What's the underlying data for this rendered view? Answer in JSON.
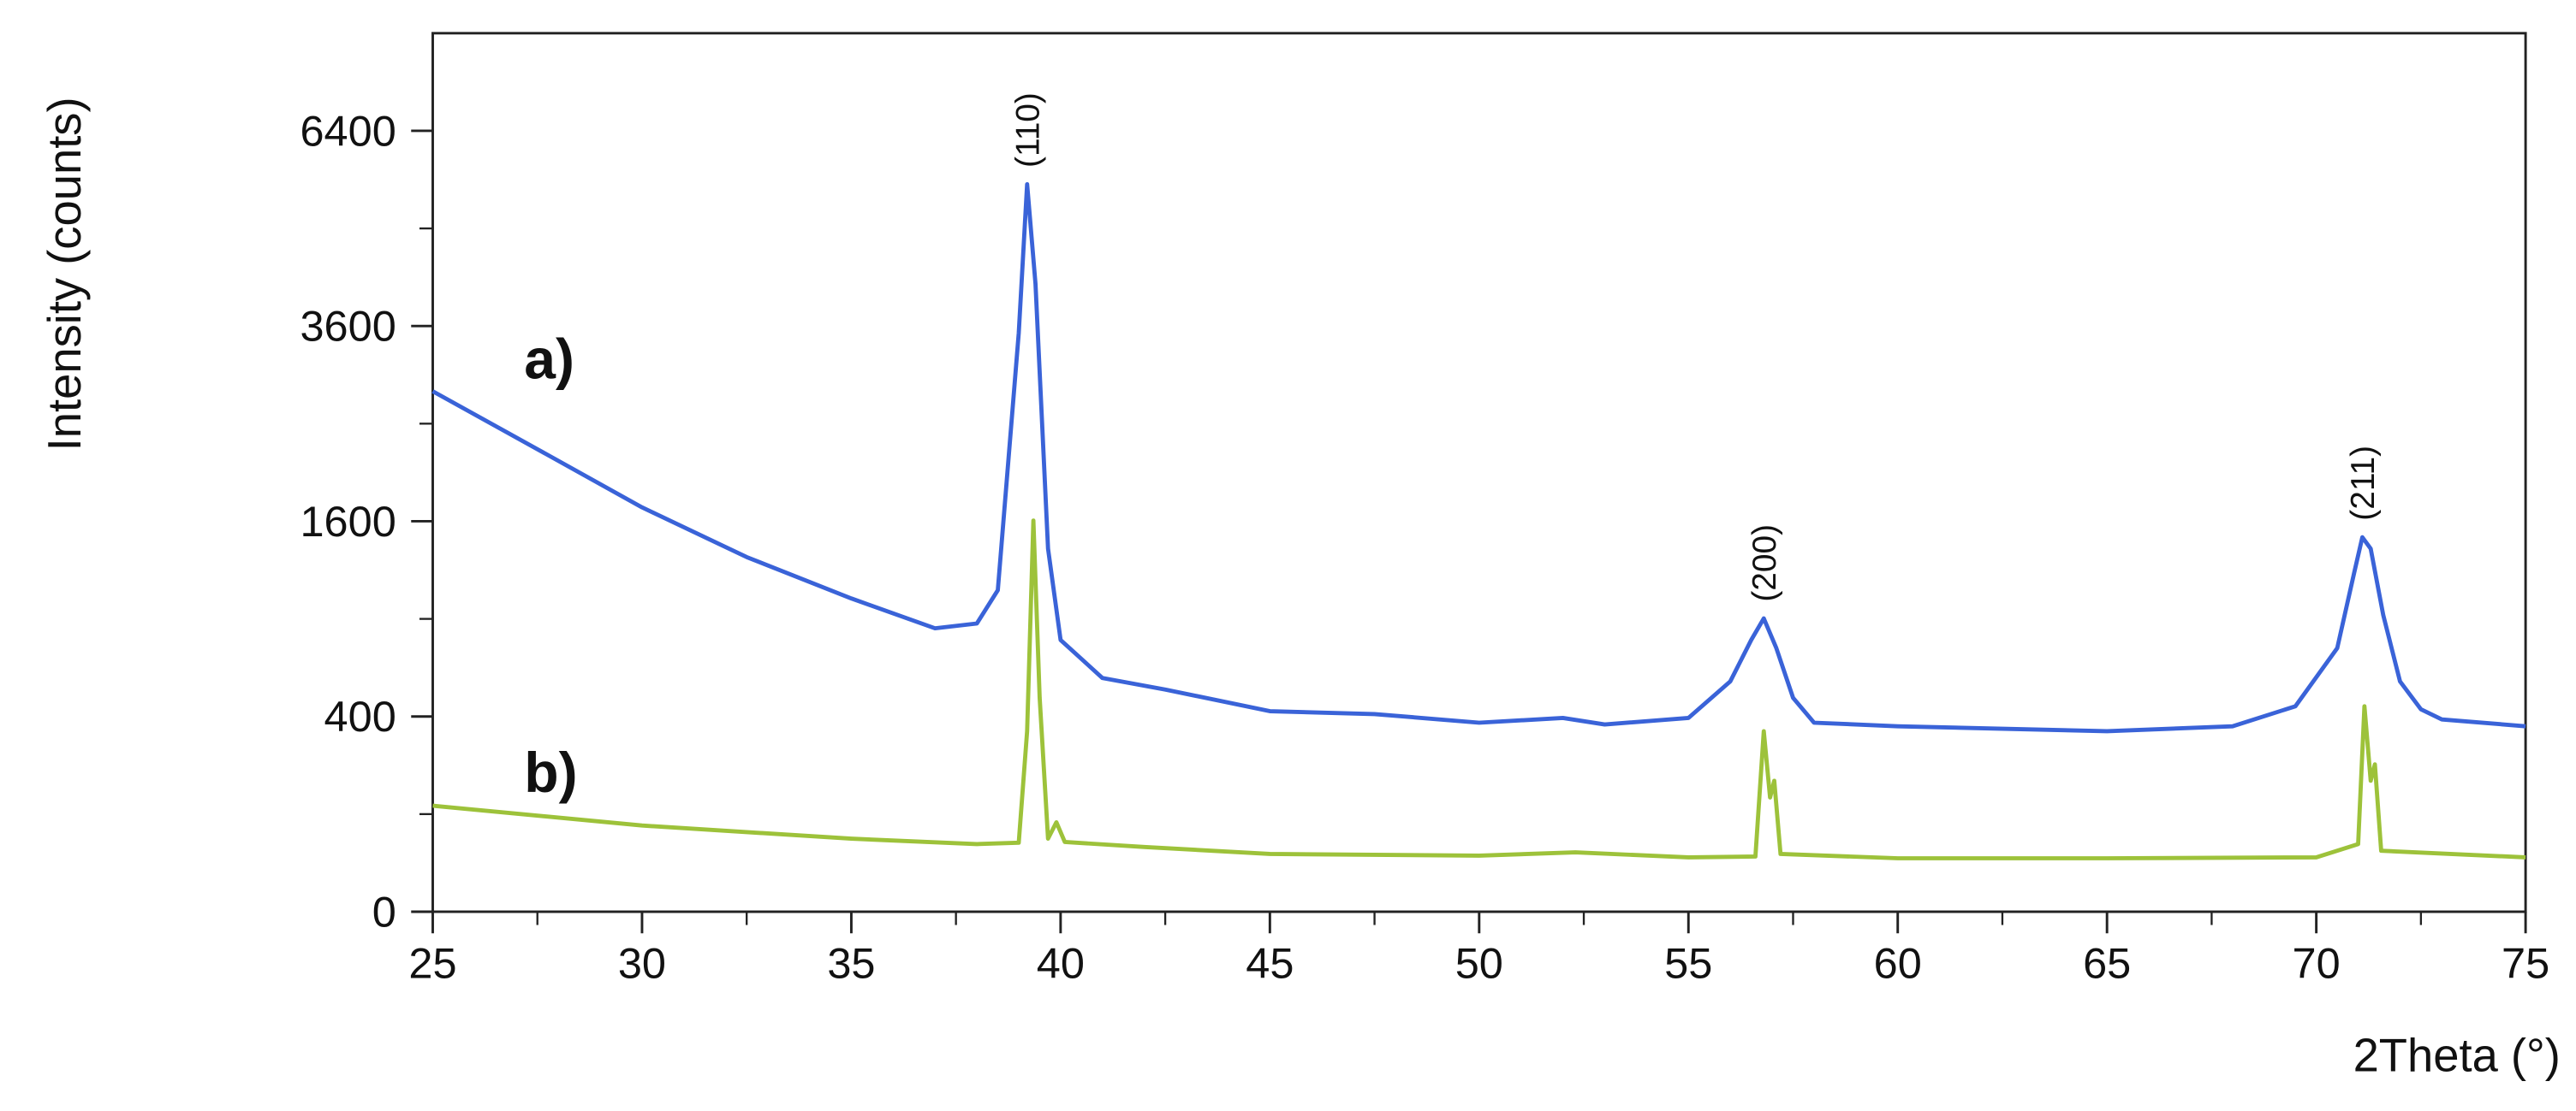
{
  "chart_data": {
    "type": "line",
    "xlabel": "2Theta (°)",
    "ylabel": "Intensity (counts)",
    "xlim": [
      25,
      75
    ],
    "xticks": [
      25,
      30,
      35,
      40,
      45,
      50,
      55,
      60,
      65,
      70,
      75
    ],
    "xminorticks": [
      27.5,
      32.5,
      37.5,
      42.5,
      47.5,
      52.5,
      57.5,
      62.5,
      67.5,
      72.5
    ],
    "ylim": [
      0,
      8100
    ],
    "yscale": "sqrt",
    "yticks": [
      0,
      400,
      1600,
      3600,
      6400
    ],
    "yminorticks": [
      100,
      900,
      2500,
      4900
    ],
    "series": [
      {
        "name": "a)",
        "color": "#3a63d8",
        "x": [
          25,
          27.5,
          30,
          32.5,
          35,
          37,
          38,
          38.5,
          39,
          39.2,
          39.4,
          39.7,
          40,
          41,
          42.5,
          45,
          47.5,
          50,
          52,
          53,
          55,
          56,
          56.5,
          56.8,
          57.1,
          57.5,
          58,
          60,
          65,
          68,
          69.5,
          70.5,
          70.9,
          71.1,
          71.3,
          71.6,
          72,
          72.5,
          73,
          75
        ],
        "values": [
          2843,
          2245,
          1716,
          1320,
          1030,
          843,
          872,
          1085,
          3513,
          5555,
          4140,
          1383,
          775,
          573,
          518,
          422,
          410,
          375,
          394,
          368,
          394,
          557,
          775,
          903,
          729,
          480,
          375,
          361,
          342,
          361,
          443,
          729,
          1199,
          1472,
          1383,
          923,
          557,
          430,
          388,
          361
        ]
      },
      {
        "name": "b)",
        "color": "#9dc23a",
        "x": [
          25,
          30,
          35,
          38,
          39,
          39.2,
          39.35,
          39.5,
          39.7,
          39.9,
          40.1,
          42,
          45,
          50,
          52.3,
          55,
          56.6,
          56.8,
          56.95,
          57.05,
          57.2,
          60,
          65,
          70,
          71,
          71.15,
          71.3,
          71.4,
          71.55,
          75
        ],
        "values": [
          118,
          78,
          56,
          48,
          50,
          342,
          1606,
          480,
          56,
          84,
          51,
          44,
          35,
          33,
          37,
          31,
          32,
          342,
          137,
          180,
          35,
          30,
          30,
          31,
          48,
          443,
          180,
          228,
          39,
          31
        ]
      }
    ],
    "annotations": [
      {
        "text": "(110)",
        "x": 39.2
      },
      {
        "text": "(200)",
        "x": 56.8
      },
      {
        "text": "(211)",
        "x": 71.1
      }
    ]
  }
}
